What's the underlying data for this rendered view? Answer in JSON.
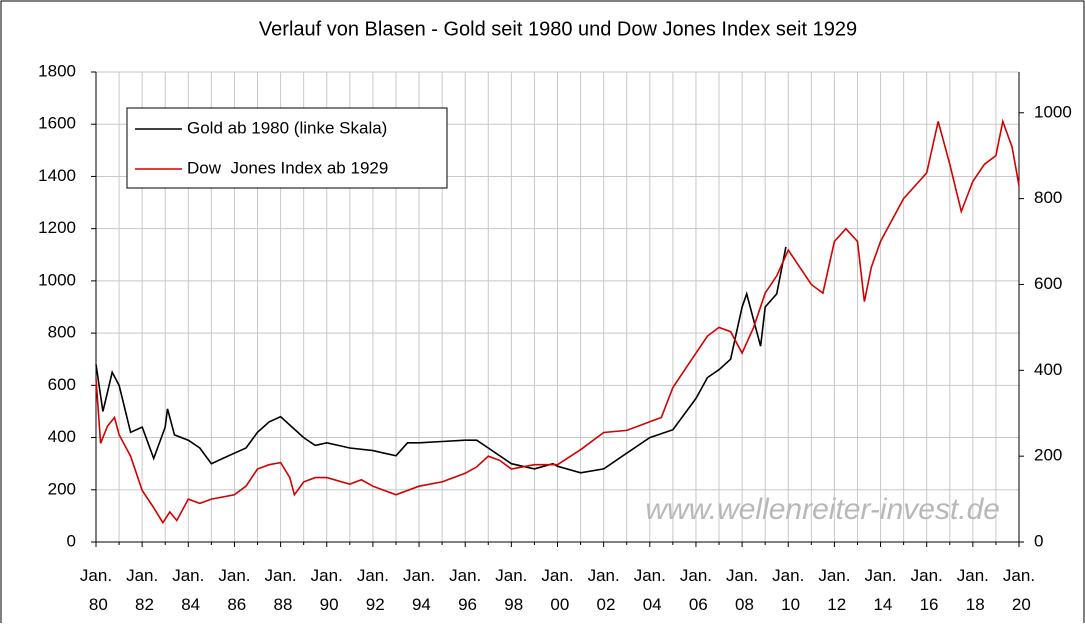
{
  "chart_data": {
    "type": "line",
    "title": "Verlauf von Blasen - Gold seit 1980 und Dow Jones Index seit 1929",
    "watermark": "www.wellenreiter-invest.de",
    "xlim": [
      1980,
      2020
    ],
    "xticks": [
      {
        "value": 1980,
        "label": "Jan. 80"
      },
      {
        "value": 1982,
        "label": "Jan. 82"
      },
      {
        "value": 1984,
        "label": "Jan. 84"
      },
      {
        "value": 1986,
        "label": "Jan. 86"
      },
      {
        "value": 1988,
        "label": "Jan. 88"
      },
      {
        "value": 1990,
        "label": "Jan. 90"
      },
      {
        "value": 1992,
        "label": "Jan. 92"
      },
      {
        "value": 1994,
        "label": "Jan. 94"
      },
      {
        "value": 1996,
        "label": "Jan. 96"
      },
      {
        "value": 1998,
        "label": "Jan. 98"
      },
      {
        "value": 2000,
        "label": "Jan. 00"
      },
      {
        "value": 2002,
        "label": "Jan. 02"
      },
      {
        "value": 2004,
        "label": "Jan. 04"
      },
      {
        "value": 2006,
        "label": "Jan. 06"
      },
      {
        "value": 2008,
        "label": "Jan. 08"
      },
      {
        "value": 2010,
        "label": "Jan. 10"
      },
      {
        "value": 2012,
        "label": "Jan. 12"
      },
      {
        "value": 2014,
        "label": "Jan. 14"
      },
      {
        "value": 2016,
        "label": "Jan. 16"
      },
      {
        "value": 2018,
        "label": "Jan. 18"
      },
      {
        "value": 2020,
        "label": "Jan. 20"
      }
    ],
    "xminorticks": [
      1981,
      1983,
      1985,
      1987,
      1989,
      1991,
      1993,
      1995,
      1997,
      1999,
      2001,
      2003,
      2005,
      2007,
      2009,
      2011,
      2013,
      2015,
      2017,
      2019
    ],
    "ylim": [
      0,
      1800
    ],
    "yticks": [
      0,
      200,
      400,
      600,
      800,
      1000,
      1200,
      1400,
      1600,
      1800
    ],
    "y2lim": [
      0,
      1095
    ],
    "y2ticks": [
      0,
      200,
      400,
      600,
      800,
      1000
    ],
    "grid": true,
    "legend": "upper left",
    "series": [
      {
        "name": "Gold ab 1980 (linke Skala)",
        "color": "#000000",
        "axis": "y",
        "x": [
          1980,
          1980.3,
          1980.7,
          1981,
          1981.5,
          1982,
          1982.5,
          1983,
          1983.1,
          1983.4,
          1984,
          1984.5,
          1985,
          1985.5,
          1986,
          1986.5,
          1987,
          1987.5,
          1988,
          1988.5,
          1989,
          1989.5,
          1990,
          1990.5,
          1991,
          1992,
          1992.5,
          1993,
          1993.5,
          1994,
          1995,
          1996,
          1996.5,
          1997,
          1997.5,
          1998,
          1999,
          1999.8,
          2000,
          2001,
          2002,
          2003,
          2004,
          2005,
          2006,
          2006.5,
          2007,
          2007.5,
          2008,
          2008.2,
          2008.8,
          2009,
          2009.5,
          2009.9
        ],
        "values": [
          680,
          500,
          650,
          600,
          420,
          440,
          320,
          440,
          510,
          410,
          390,
          360,
          300,
          320,
          340,
          360,
          420,
          460,
          480,
          440,
          400,
          370,
          380,
          370,
          360,
          350,
          340,
          330,
          380,
          380,
          385,
          390,
          390,
          360,
          330,
          300,
          280,
          300,
          290,
          265,
          280,
          340,
          400,
          430,
          550,
          630,
          660,
          700,
          900,
          950,
          750,
          900,
          950,
          1130
        ]
      },
      {
        "name": "Dow  Jones Index ab 1929",
        "color": "#d40000",
        "axis": "y2",
        "x": [
          1980,
          1980.2,
          1980.5,
          1980.8,
          1981,
          1981.5,
          1982,
          1982.5,
          1982.9,
          1983.2,
          1983.5,
          1984,
          1984.5,
          1985,
          1986,
          1986.5,
          1987,
          1987.5,
          1988,
          1988.4,
          1988.6,
          1989,
          1989.5,
          1990,
          1991,
          1991.5,
          1992,
          1992.5,
          1993,
          1994,
          1995,
          1996,
          1996.5,
          1997,
          1997.5,
          1998,
          1999,
          2000,
          2001,
          2002,
          2003,
          2004,
          2004.5,
          2005,
          2005.5,
          2006,
          2006.5,
          2007,
          2007.5,
          2008,
          2008.5,
          2009,
          2009.5,
          2010,
          2011,
          2011.5,
          2012,
          2012.5,
          2013,
          2013.3,
          2013.6,
          2014,
          2015,
          2016,
          2016.5,
          2017,
          2017.5,
          2018,
          2018.5,
          2019,
          2019.3,
          2019.7,
          2020
        ],
        "values": [
          381,
          230,
          270,
          290,
          250,
          200,
          120,
          80,
          45,
          70,
          50,
          100,
          90,
          100,
          110,
          130,
          170,
          180,
          185,
          150,
          110,
          140,
          150,
          150,
          135,
          145,
          130,
          120,
          110,
          130,
          140,
          160,
          175,
          200,
          190,
          170,
          180,
          180,
          215,
          255,
          260,
          280,
          290,
          360,
          400,
          440,
          480,
          500,
          490,
          440,
          500,
          580,
          620,
          680,
          600,
          580,
          700,
          730,
          700,
          560,
          640,
          700,
          800,
          860,
          980,
          880,
          770,
          840,
          880,
          900,
          980,
          920,
          830
        ]
      }
    ]
  }
}
